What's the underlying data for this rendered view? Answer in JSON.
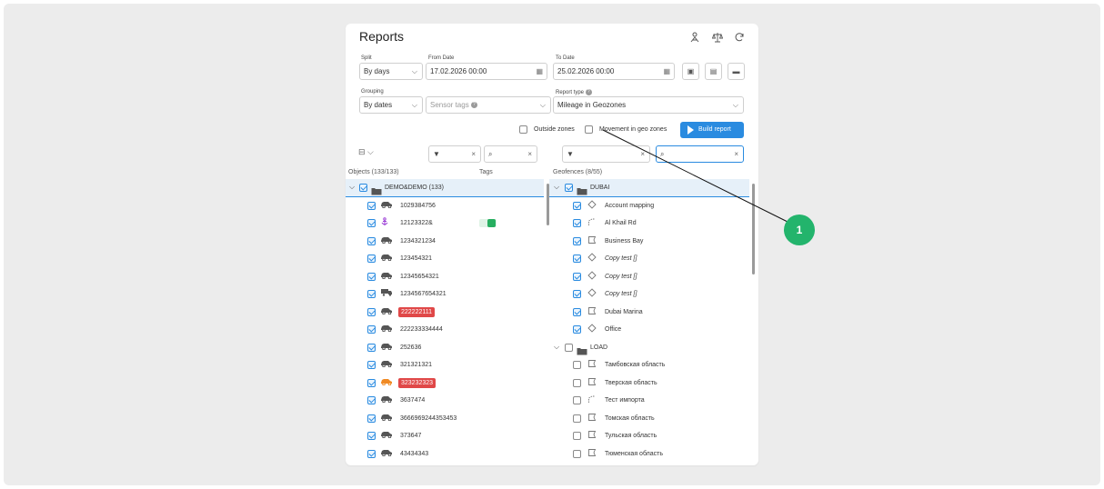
{
  "header": {
    "title": "Reports",
    "icons": [
      "user-tree-icon",
      "scales-icon",
      "refresh-icon"
    ]
  },
  "split": {
    "label": "Split",
    "value": "By days"
  },
  "from_date": {
    "label": "From Date",
    "value": "17.02.2026 00:00"
  },
  "to_date": {
    "label": "To Date",
    "value": "25.02.2026 00:00"
  },
  "grouping": {
    "label": "Grouping",
    "value": "By dates"
  },
  "sensor_tags": {
    "placeholder": "Sensor tags",
    "help": "?"
  },
  "report_type": {
    "label": "Report type",
    "help": "?",
    "value": "Mileage in Geozones"
  },
  "options": {
    "outside_zones": "Outside zones",
    "movement_in_geo_zones": "Movement in geo zones",
    "build_report": "Build report"
  },
  "left_toolbar": {
    "filter_clear": "×",
    "search_clear": "×"
  },
  "right_toolbar": {
    "filter_clear": "×",
    "search_clear": "×"
  },
  "objects": {
    "header": "Objects (133/133)",
    "tags_header": "Tags",
    "group": "DEMO&DEMO (133)",
    "items": [
      {
        "name": "1029384756",
        "icon": "car-icon"
      },
      {
        "name": "12123322&",
        "icon": "anchor-icon",
        "tag": true
      },
      {
        "name": "1234321234",
        "icon": "car-icon"
      },
      {
        "name": "123454321",
        "icon": "car-icon"
      },
      {
        "name": "12345654321",
        "icon": "car-icon"
      },
      {
        "name": "1234567654321",
        "icon": "truck-icon"
      },
      {
        "name": "222222111",
        "icon": "car-icon",
        "badge": true
      },
      {
        "name": "222233334444",
        "icon": "car-icon"
      },
      {
        "name": "252636",
        "icon": "car-icon"
      },
      {
        "name": "321321321",
        "icon": "car-icon"
      },
      {
        "name": "323232323",
        "icon": "car-orange-icon",
        "badge": true
      },
      {
        "name": "3637474",
        "icon": "car-icon"
      },
      {
        "name": "3666969244353453",
        "icon": "car-icon"
      },
      {
        "name": "373647",
        "icon": "car-icon"
      },
      {
        "name": "43434343",
        "icon": "car-icon"
      }
    ]
  },
  "geofences": {
    "header": "Geofences (8/55)",
    "groups": [
      {
        "name": "DUBAI",
        "checked": true,
        "items": [
          {
            "name": "Account mapping",
            "icon": "circle-zone-icon",
            "italic": false
          },
          {
            "name": "Al Khail Rd",
            "icon": "line-zone-icon",
            "italic": false
          },
          {
            "name": "Business Bay",
            "icon": "polygon-zone-icon",
            "italic": false
          },
          {
            "name": "Copy test []",
            "icon": "circle-zone-icon",
            "italic": true
          },
          {
            "name": "Copy test []",
            "icon": "circle-zone-icon",
            "italic": true
          },
          {
            "name": "Copy test []",
            "icon": "circle-zone-icon",
            "italic": true
          },
          {
            "name": "Dubai Marina",
            "icon": "polygon-zone-icon",
            "italic": false
          },
          {
            "name": "Office",
            "icon": "circle-zone-icon",
            "italic": false
          }
        ]
      },
      {
        "name": "LOAD",
        "checked": false,
        "items": [
          {
            "name": "Тамбовская область",
            "icon": "polygon-zone-icon"
          },
          {
            "name": "Тверская область",
            "icon": "polygon-zone-icon"
          },
          {
            "name": "Тест импорта",
            "icon": "line-zone-icon"
          },
          {
            "name": "Томская область",
            "icon": "polygon-zone-icon"
          },
          {
            "name": "Тульская область",
            "icon": "polygon-zone-icon"
          },
          {
            "name": "Тюменская область",
            "icon": "polygon-zone-icon"
          }
        ]
      }
    ]
  },
  "callout": {
    "number": "1"
  },
  "colors": {
    "accent": "#2a8be0",
    "badge_red": "#e04848",
    "callout_green": "#23b46c"
  }
}
